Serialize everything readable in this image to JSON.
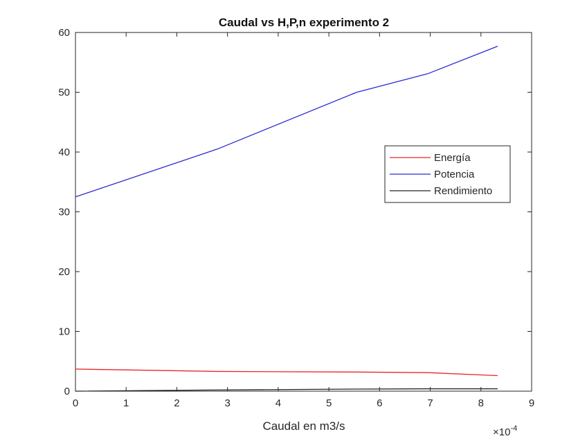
{
  "chart_data": {
    "type": "line",
    "title": "Caudal vs H,P,n experimento 2",
    "xlabel": "Caudal en m3/s",
    "ylabel": "",
    "x_exponent_label": "×10",
    "x_exponent_power": "-4",
    "xlim": [
      0,
      9
    ],
    "ylim": [
      0,
      60
    ],
    "xticks": [
      "0",
      "1",
      "2",
      "3",
      "4",
      "5",
      "6",
      "7",
      "8",
      "9"
    ],
    "yticks": [
      "0",
      "10",
      "20",
      "30",
      "40",
      "50",
      "60"
    ],
    "grid": false,
    "legend_position": "right-middle",
    "x": [
      0,
      2.8,
      5.55,
      6.95,
      8.33
    ],
    "series": [
      {
        "name": "Energía",
        "color": "#e8262b",
        "values": [
          3.7,
          3.3,
          3.2,
          3.1,
          2.6
        ]
      },
      {
        "name": "Potencia",
        "color": "#2a2ad6",
        "values": [
          32.5,
          40.5,
          50.0,
          53.1,
          57.7
        ]
      },
      {
        "name": "Rendimiento",
        "color": "#222222",
        "values": [
          0.0,
          0.2,
          0.35,
          0.4,
          0.4
        ]
      }
    ]
  }
}
